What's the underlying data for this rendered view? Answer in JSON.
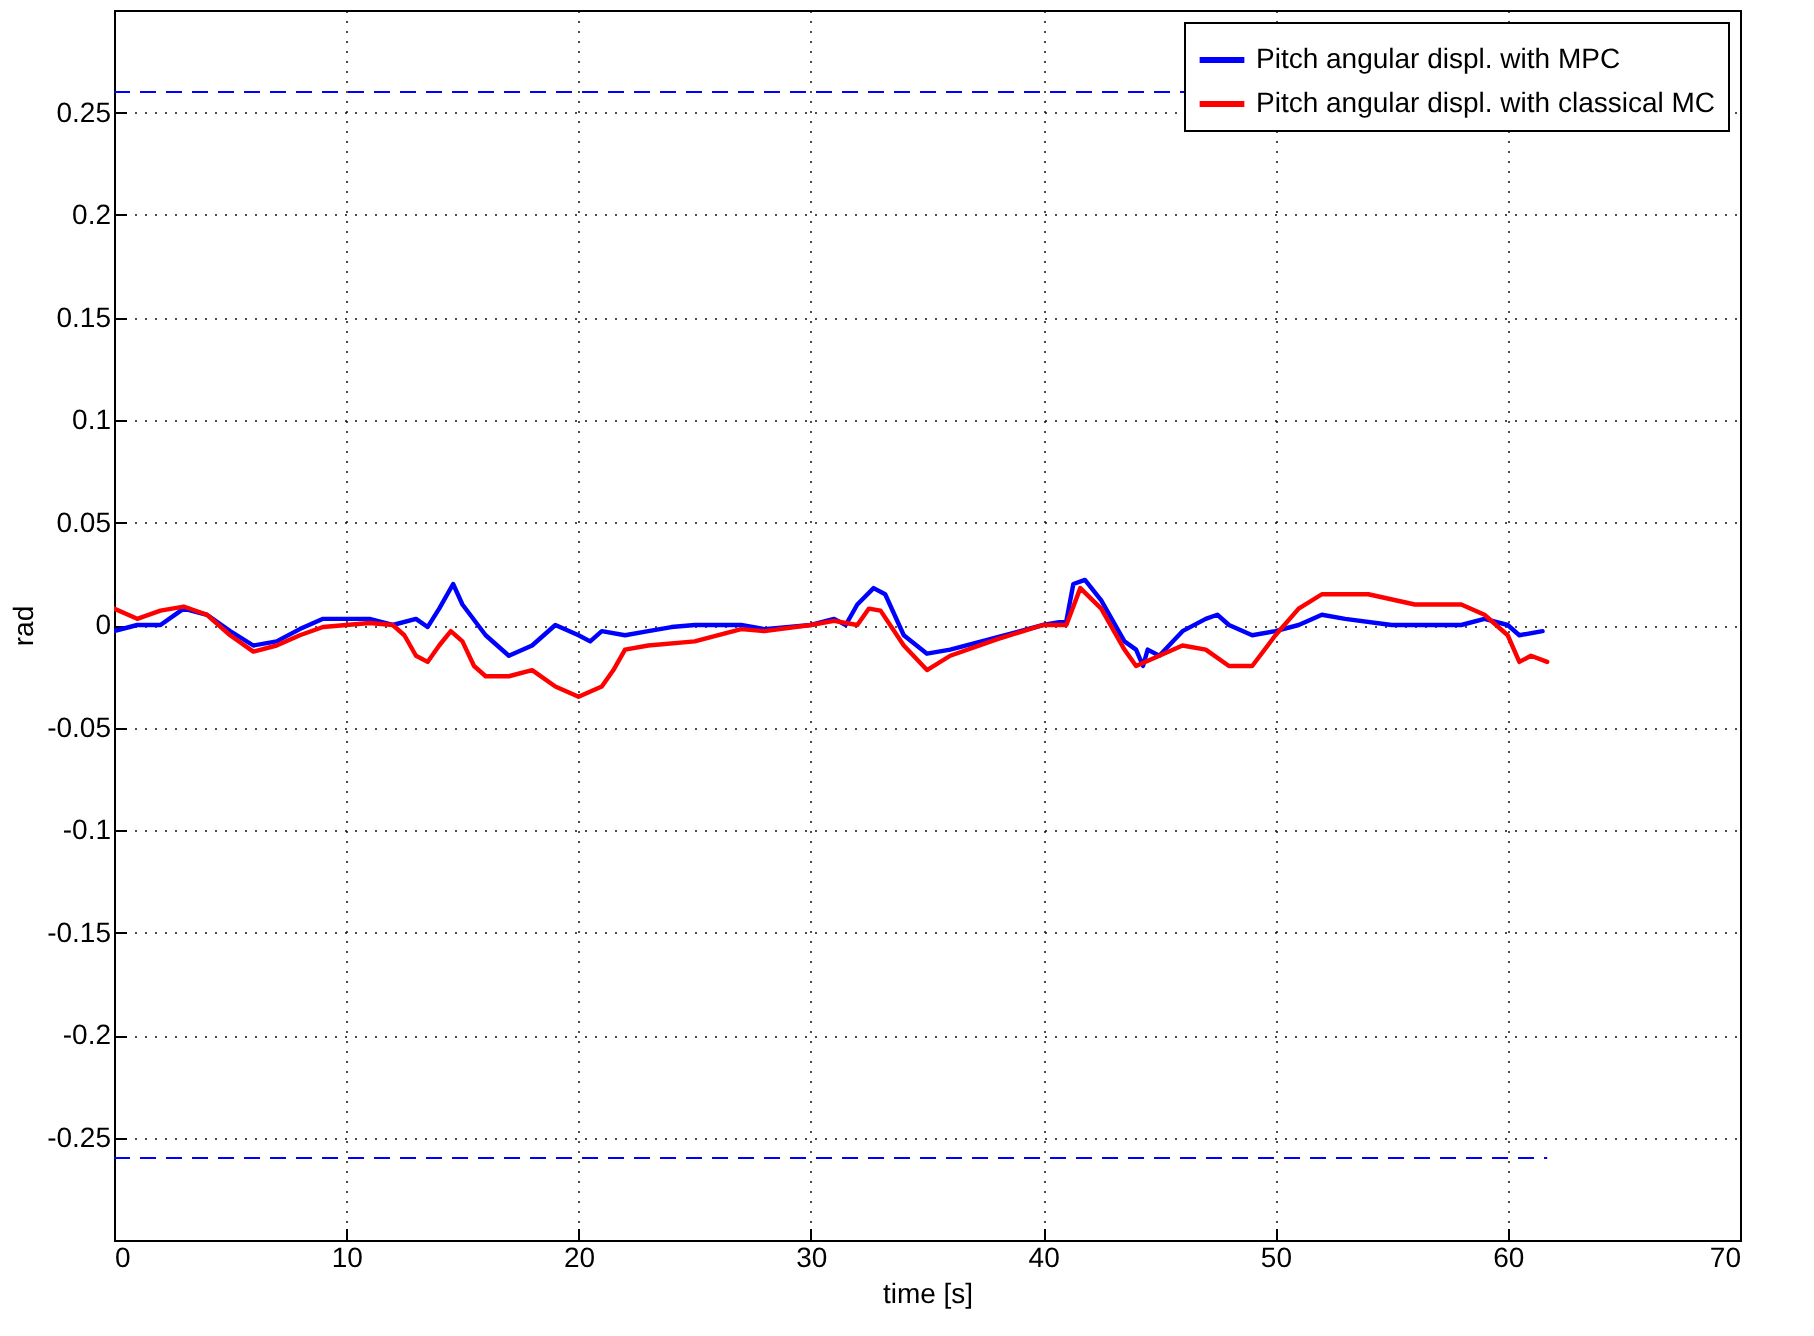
{
  "chart_data": {
    "type": "line",
    "xlabel": "time [s]",
    "ylabel": "rad",
    "xlim": [
      0,
      70
    ],
    "xticks": [
      0,
      10,
      20,
      30,
      40,
      50,
      60,
      70
    ],
    "ylim": [
      -0.3,
      0.3
    ],
    "yticks": [
      -0.25,
      -0.2,
      -0.15,
      -0.1,
      -0.05,
      0,
      0.05,
      0.1,
      0.15,
      0.2,
      0.25
    ],
    "grid": true,
    "legend": "top right",
    "line_style": "solid",
    "ref_lines": [
      {
        "axis": "y",
        "value": 0.26,
        "color": "#0000ff",
        "line_style": "dashed"
      },
      {
        "axis": "y",
        "value": -0.26,
        "color": "#0000ff",
        "line_style": "dashed"
      }
    ],
    "series": [
      {
        "name": "Pitch angular displ. with MPC",
        "color": "#0000ff",
        "x": [
          0,
          1,
          2,
          3,
          4,
          5,
          6,
          7,
          8,
          9,
          10,
          11,
          12,
          13,
          13.5,
          14,
          14.6,
          15,
          16,
          17,
          18,
          19,
          20,
          20.5,
          21,
          22,
          23,
          24,
          25,
          27,
          28,
          30,
          31,
          31.5,
          32,
          32.7,
          33.2,
          34,
          35,
          36,
          38,
          40,
          41,
          41.3,
          41.8,
          42.5,
          43.5,
          44,
          44.3,
          44.5,
          45,
          46,
          47,
          47.5,
          48,
          49,
          50,
          51,
          52,
          53,
          55,
          58,
          59,
          60,
          60.5,
          61.5
        ],
        "values": [
          -0.003,
          0,
          0,
          0.008,
          0.005,
          -0.003,
          -0.01,
          -0.008,
          -0.002,
          0.003,
          0.003,
          0.003,
          0,
          0.003,
          -0.001,
          0.008,
          0.02,
          0.01,
          -0.005,
          -0.015,
          -0.01,
          0,
          -0.005,
          -0.008,
          -0.003,
          -0.005,
          -0.003,
          -0.001,
          0,
          0,
          -0.002,
          0,
          0.003,
          0,
          0.01,
          0.018,
          0.015,
          -0.005,
          -0.014,
          -0.012,
          -0.006,
          0,
          0.002,
          0.02,
          0.022,
          0.012,
          -0.008,
          -0.012,
          -0.02,
          -0.012,
          -0.015,
          -0.003,
          0.003,
          0.005,
          0,
          -0.005,
          -0.003,
          0,
          0.005,
          0.003,
          0,
          0,
          0.003,
          0,
          -0.005,
          -0.003
        ]
      },
      {
        "name": "Pitch angular displ. with classical MC",
        "color": "#ff0000",
        "x": [
          0,
          1,
          2,
          3,
          4,
          5,
          6,
          7,
          8,
          9,
          10,
          11,
          12,
          12.5,
          13,
          13.5,
          14,
          14.5,
          15,
          15.5,
          16,
          17,
          18,
          19,
          20,
          21,
          21.5,
          22,
          23,
          25,
          27,
          28,
          30,
          31,
          32,
          32.5,
          33,
          34,
          35,
          36,
          38,
          40,
          41,
          41.6,
          42.5,
          43.5,
          44,
          45,
          46,
          47,
          48,
          49,
          50,
          51,
          52,
          54,
          56,
          58,
          59,
          60,
          60.5,
          61,
          61.7
        ],
        "values": [
          0.008,
          0.003,
          0.007,
          0.009,
          0.005,
          -0.005,
          -0.013,
          -0.01,
          -0.005,
          -0.001,
          0,
          0.001,
          0,
          -0.005,
          -0.015,
          -0.018,
          -0.01,
          -0.003,
          -0.008,
          -0.02,
          -0.025,
          -0.025,
          -0.022,
          -0.03,
          -0.035,
          -0.03,
          -0.022,
          -0.012,
          -0.01,
          -0.008,
          -0.002,
          -0.003,
          0,
          0.002,
          0,
          0.008,
          0.007,
          -0.01,
          -0.022,
          -0.015,
          -0.007,
          0,
          0,
          0.018,
          0.008,
          -0.012,
          -0.02,
          -0.015,
          -0.01,
          -0.012,
          -0.02,
          -0.02,
          -0.005,
          0.008,
          0.015,
          0.015,
          0.01,
          0.01,
          0.005,
          -0.005,
          -0.018,
          -0.015,
          -0.018
        ]
      }
    ]
  }
}
